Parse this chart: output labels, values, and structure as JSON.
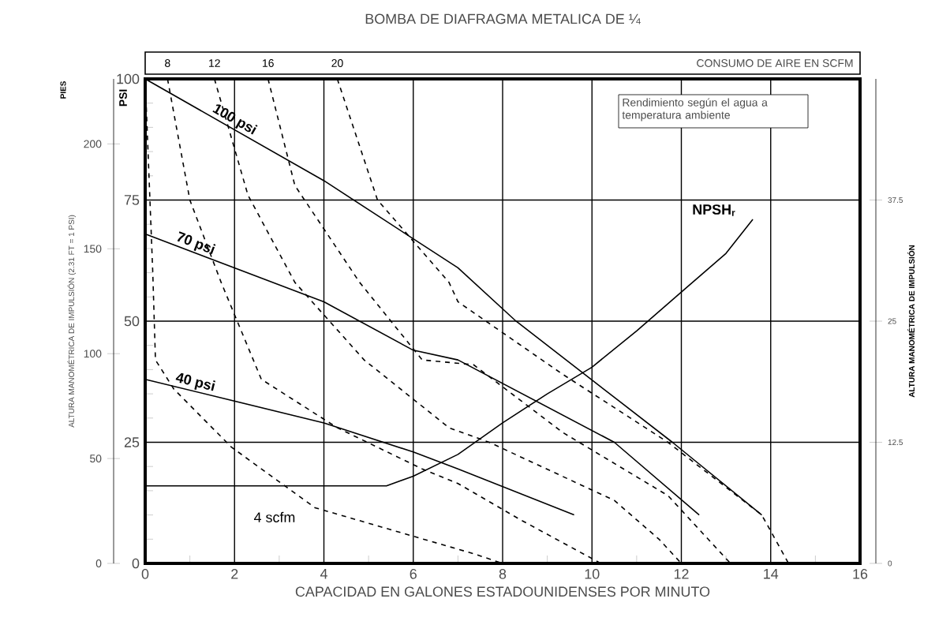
{
  "chart_data": {
    "type": "line",
    "title": "BOMBA DE DIAFRAGMA METALICA DE ¼",
    "xlabel": "CAPACIDAD EN GALONES ESTADOUNIDENSES POR MINUTO",
    "ylabel": "PSI",
    "y2label": "ALTURA MANOMÉTRICA DE IMPULSIÓN (2.31 FT = 1 PSI)",
    "y3label": "ALTURA MANOMÉTRICA DE IMPULSIÓN",
    "xlim": [
      0,
      16
    ],
    "xticks": [
      0,
      2,
      4,
      6,
      8,
      10,
      12,
      14,
      16
    ],
    "ylim": [
      0,
      100
    ],
    "yticks": [
      0,
      25,
      50,
      75,
      100
    ],
    "y2lim": [
      0,
      231
    ],
    "y2ticks": [
      0,
      50,
      100,
      150,
      200
    ],
    "y3lim": [
      0,
      50
    ],
    "y3ticks": [
      0,
      12.5,
      25,
      37.5
    ],
    "grid": true,
    "line_style": "solid",
    "annotations": [
      "PIES",
      "CONSUMO DE AIRE EN SCFM",
      "Rendimiento según el agua a temperatura ambiente"
    ],
    "series": [
      {
        "name": "100 psi",
        "color": "#000000",
        "x": [
          0,
          4,
          6,
          7,
          8.3,
          11.8,
          13.8
        ],
        "values": [
          100,
          79,
          67,
          61,
          50,
          25,
          10
        ]
      },
      {
        "name": "70 psi",
        "color": "#000000",
        "x": [
          0,
          4,
          6,
          7,
          10.5,
          12.4
        ],
        "values": [
          68,
          54,
          44,
          42,
          25,
          10
        ]
      },
      {
        "name": "40 psi",
        "color": "#000000",
        "x": [
          0,
          4,
          6,
          7,
          9.6
        ],
        "values": [
          38,
          29,
          23,
          19.5,
          10
        ]
      },
      {
        "name": "NPSH$_{r}$",
        "color": "#000000",
        "x": [
          0,
          5.4,
          6,
          7,
          8,
          9,
          10,
          11,
          12,
          13,
          13.6
        ],
        "values": [
          16,
          16,
          18,
          22.5,
          29,
          35,
          40.5,
          48,
          56,
          64,
          71
        ]
      },
      {
        "name": "4 scfm",
        "color": "#000000",
        "line_style": "dashed",
        "x": [
          0,
          0.17,
          0.23,
          0.64,
          1.93,
          3.8,
          7.35,
          8
        ],
        "values": [
          100,
          60,
          42,
          36,
          24,
          11.5,
          2,
          0
        ]
      },
      {
        "name": "8",
        "color": "#000000",
        "line_style": "dashed",
        "x": [
          0.5,
          1,
          1.7,
          2.6,
          4.3,
          6.2,
          7,
          8.4,
          10.2
        ],
        "values": [
          100,
          75,
          58,
          38,
          28,
          19.5,
          16.5,
          9,
          0
        ]
      },
      {
        "name": "12",
        "color": "#000000",
        "line_style": "dashed",
        "x": [
          1.55,
          2.3,
          3.35,
          4.9,
          6.8,
          7.7,
          10.5,
          11.5,
          12
        ],
        "values": [
          100,
          76,
          58,
          42,
          28,
          25,
          13,
          5,
          0
        ]
      },
      {
        "name": "16",
        "color": "#000000",
        "line_style": "dashed",
        "x": [
          2.75,
          3.35,
          4.8,
          6.2,
          7.35,
          9.35,
          11.7,
          13.1
        ],
        "values": [
          100,
          78,
          58,
          42,
          41,
          27,
          14,
          0
        ]
      },
      {
        "name": "20",
        "color": "#000000",
        "line_style": "dashed",
        "x": [
          4.3,
          5.2,
          6.8,
          7,
          9.35,
          11.7,
          13.8,
          14.4
        ],
        "values": [
          100,
          75,
          58,
          54,
          39,
          25,
          10,
          0
        ]
      }
    ]
  }
}
